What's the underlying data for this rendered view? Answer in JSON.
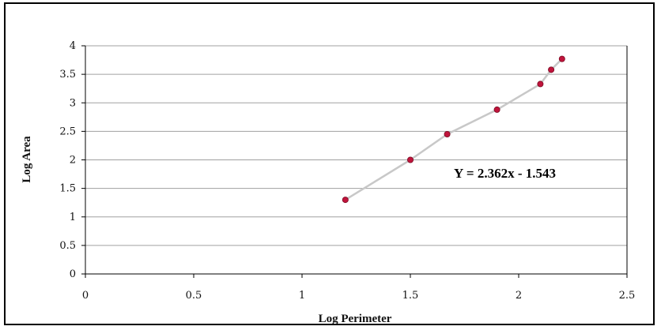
{
  "chart_data": {
    "type": "scatter",
    "xlabel": "Log Perimeter",
    "ylabel": "Log Area",
    "xlim": [
      0,
      2.5
    ],
    "ylim": [
      0,
      4
    ],
    "xticks": [
      "0",
      "0.5",
      "1",
      "1.5",
      "2",
      "2.5"
    ],
    "yticks": [
      "0",
      "0.5",
      "1",
      "1.5",
      "2",
      "2.5",
      "3",
      "3.5",
      "4"
    ],
    "grid": "horizontal",
    "legend": "none",
    "annotation": "Y = 2.362x - 1.543",
    "series": [
      {
        "x": [
          1.2,
          1.5,
          1.67,
          1.9,
          2.1,
          2.15,
          2.2
        ],
        "y": [
          1.3,
          2.0,
          2.45,
          2.88,
          3.33,
          3.58,
          3.77
        ]
      }
    ],
    "colors": {
      "marker": "#c0143c",
      "line": "#c8c8c8",
      "grid": "#a0a0a0",
      "axis": "#000000"
    }
  }
}
